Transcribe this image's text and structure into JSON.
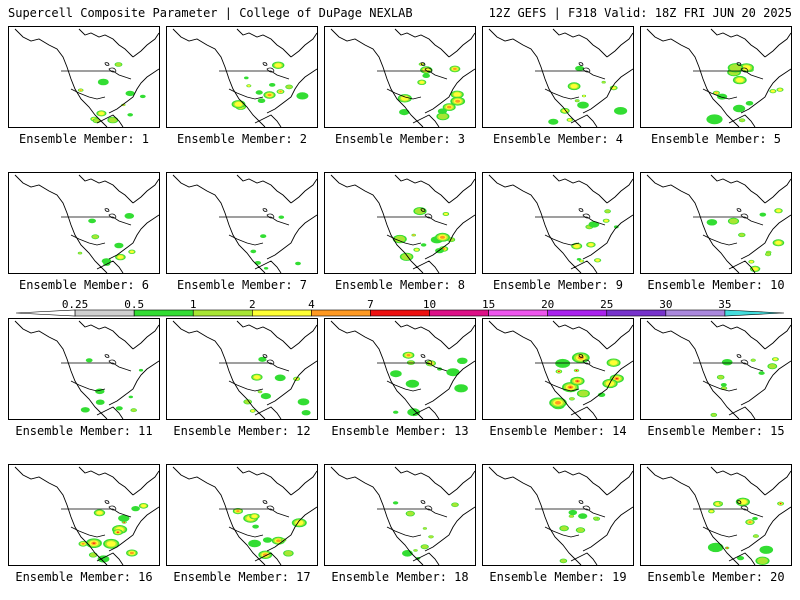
{
  "header": {
    "title_left": "Supercell Composite Parameter | College of DuPage NEXLAB",
    "title_right": "12Z GEFS | F318 Valid: 18Z FRI JUN 20 2025"
  },
  "member_label_prefix": "Ensemble Member: ",
  "members": [
    {
      "label": "Ensemble Member: 1",
      "intensity": 0.7
    },
    {
      "label": "Ensemble Member: 2",
      "intensity": 0.8
    },
    {
      "label": "Ensemble Member: 3",
      "intensity": 0.8
    },
    {
      "label": "Ensemble Member: 4",
      "intensity": 0.7
    },
    {
      "label": "Ensemble Member: 5",
      "intensity": 0.9
    },
    {
      "label": "Ensemble Member: 6",
      "intensity": 0.5
    },
    {
      "label": "Ensemble Member: 7",
      "intensity": 0.2
    },
    {
      "label": "Ensemble Member: 8",
      "intensity": 0.8
    },
    {
      "label": "Ensemble Member: 9",
      "intensity": 0.6
    },
    {
      "label": "Ensemble Member: 10",
      "intensity": 0.6
    },
    {
      "label": "Ensemble Member: 11",
      "intensity": 0.4
    },
    {
      "label": "Ensemble Member: 12",
      "intensity": 0.6
    },
    {
      "label": "Ensemble Member: 13",
      "intensity": 0.7
    },
    {
      "label": "Ensemble Member: 14",
      "intensity": 1.0
    },
    {
      "label": "Ensemble Member: 15",
      "intensity": 0.5
    },
    {
      "label": "Ensemble Member: 16",
      "intensity": 0.9
    },
    {
      "label": "Ensemble Member: 17",
      "intensity": 0.8
    },
    {
      "label": "Ensemble Member: 18",
      "intensity": 0.5
    },
    {
      "label": "Ensemble Member: 19",
      "intensity": 0.4
    },
    {
      "label": "Ensemble Member: 20",
      "intensity": 0.9
    }
  ],
  "legend": {
    "ticks": [
      "0.25",
      "0.5",
      "1",
      "2",
      "4",
      "7",
      "10",
      "15",
      "20",
      "25",
      "30",
      "35"
    ],
    "colors": [
      "#d0d0d0",
      "#33dd33",
      "#a8e633",
      "#ffff33",
      "#ff9922",
      "#ee1111",
      "#dd1188",
      "#ee55ee",
      "#aa22ee",
      "#7733cc",
      "#aa88dd",
      "#44dddd"
    ]
  },
  "colors": {
    "coast": "#000000",
    "border": "#000000"
  }
}
